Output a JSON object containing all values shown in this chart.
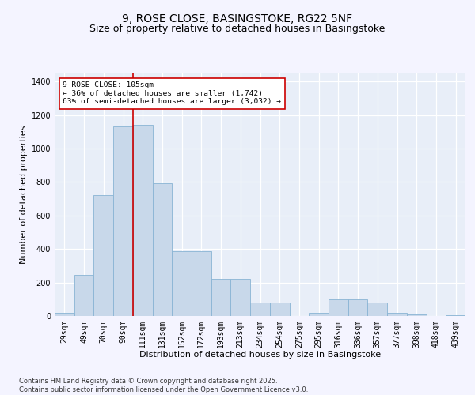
{
  "title1": "9, ROSE CLOSE, BASINGSTOKE, RG22 5NF",
  "title2": "Size of property relative to detached houses in Basingstoke",
  "xlabel": "Distribution of detached houses by size in Basingstoke",
  "ylabel": "Number of detached properties",
  "bin_labels": [
    "29sqm",
    "49sqm",
    "70sqm",
    "90sqm",
    "111sqm",
    "131sqm",
    "152sqm",
    "172sqm",
    "193sqm",
    "213sqm",
    "234sqm",
    "254sqm",
    "275sqm",
    "295sqm",
    "316sqm",
    "336sqm",
    "357sqm",
    "377sqm",
    "398sqm",
    "418sqm",
    "439sqm"
  ],
  "bar_values": [
    20,
    245,
    720,
    1130,
    1140,
    790,
    385,
    385,
    220,
    220,
    80,
    80,
    0,
    20,
    100,
    100,
    80,
    20,
    10,
    0,
    5
  ],
  "bar_color": "#c8d8ea",
  "bar_edge_color": "#89b4d4",
  "vline_x": 3.5,
  "vline_color": "#cc0000",
  "annotation_text": "9 ROSE CLOSE: 105sqm\n← 36% of detached houses are smaller (1,742)\n63% of semi-detached houses are larger (3,032) →",
  "annotation_box_color": "#ffffff",
  "annotation_box_edge": "#cc0000",
  "ylim": [
    0,
    1450
  ],
  "yticks": [
    0,
    200,
    400,
    600,
    800,
    1000,
    1200,
    1400
  ],
  "background_color": "#e8eef8",
  "grid_color": "#ffffff",
  "footer": "Contains HM Land Registry data © Crown copyright and database right 2025.\nContains public sector information licensed under the Open Government Licence v3.0.",
  "title_fontsize": 10,
  "subtitle_fontsize": 9,
  "axis_label_fontsize": 8,
  "tick_fontsize": 7,
  "footer_fontsize": 6,
  "fig_bg": "#f4f4ff"
}
